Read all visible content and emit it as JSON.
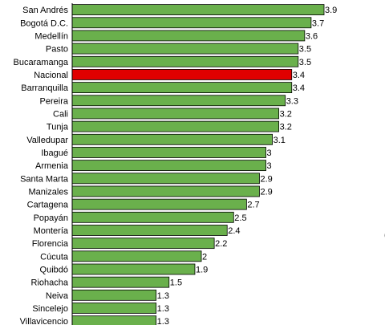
{
  "chart_data": {
    "type": "bar",
    "orientation": "horizontal",
    "categories": [
      "San Andrés",
      "Bogotá D.C.",
      "Medellín",
      "Pasto",
      "Bucaramanga",
      "Nacional",
      "Barranquilla",
      "Pereira",
      "Cali",
      "Tunja",
      "Valledupar",
      "Ibagué",
      "Armenia",
      "Santa Marta",
      "Manizales",
      "Cartagena",
      "Popayán",
      "Montería",
      "Florencia",
      "Cúcuta",
      "Quibdó",
      "Riohacha",
      "Neiva",
      "Sincelejo",
      "Villavicencio"
    ],
    "values": [
      3.9,
      3.7,
      3.6,
      3.5,
      3.5,
      3.4,
      3.4,
      3.3,
      3.2,
      3.2,
      3.1,
      3,
      3,
      2.9,
      2.9,
      2.7,
      2.5,
      2.4,
      2.2,
      2,
      1.9,
      1.5,
      1.3,
      1.3,
      1.3
    ],
    "value_labels": [
      "3.9",
      "3.7",
      "3.6",
      "3.5",
      "3.5",
      "3.4",
      "3.4",
      "3.3",
      "3.2",
      "3.2",
      "3.1",
      "3",
      "3",
      "2.9",
      "2.9",
      "2.7",
      "2.5",
      "2.4",
      "2.2",
      "2",
      "1.9",
      "1.5",
      "1.3",
      "1.3",
      "1.3"
    ],
    "highlight_category": "Nacional",
    "xlim": [
      0,
      3.9
    ],
    "grid": false,
    "legend": "none",
    "colors": {
      "bar": "#6ab04c",
      "highlight": "#e00000",
      "bar_border": "#000000",
      "axis": "#000000"
    }
  },
  "stray_text": "("
}
